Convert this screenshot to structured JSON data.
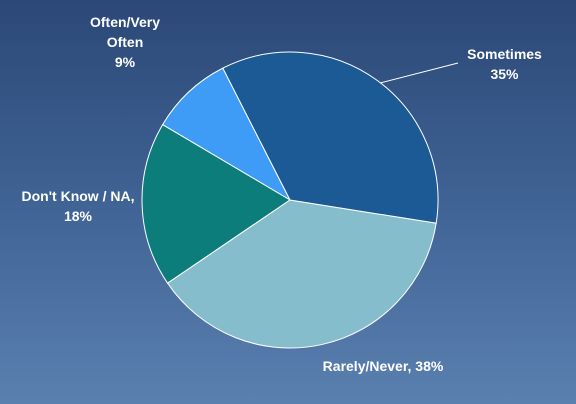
{
  "chart_data": {
    "type": "pie",
    "categories": [
      "Sometimes",
      "Rarely/Never,",
      "Don't Know / NA,",
      "Often/Very Often"
    ],
    "values": [
      35,
      38,
      18,
      9
    ],
    "value_labels": [
      "35%",
      "38%",
      "18%",
      "9%"
    ],
    "colors": [
      "#1b5a95",
      "#86bdcc",
      "#0d7d7b",
      "#3e9cf6"
    ]
  }
}
